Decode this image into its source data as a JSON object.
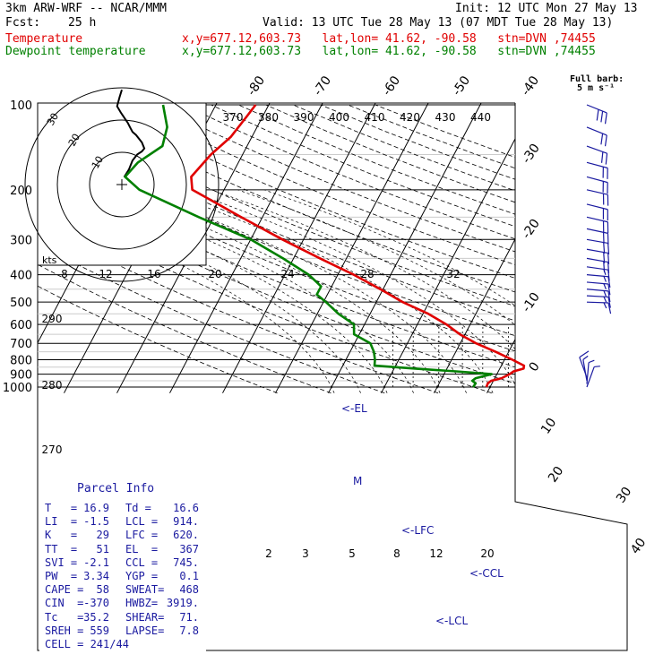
{
  "header": {
    "model": "3km ARW-WRF -- NCAR/MMM",
    "init": "Init: 12 UTC Mon 27 May 13",
    "fcst_label": "Fcst:",
    "fcst_value": "25 h",
    "valid": "Valid: 13 UTC Tue 28 May 13 (07 MDT Tue 28 May 13)",
    "temp_label": "Temperature",
    "dew_label": "Dewpoint temperature",
    "location_info": "x,y=677.12,603.73   lat,lon= 41.62, -90.58   stn=DVN ,74455"
  },
  "barb_legend": {
    "line1": "Full barb:",
    "line2": "5 m s⁻¹"
  },
  "parcel_info": {
    "title": "Parcel Info",
    "rows": [
      {
        "l1": "T   =",
        "v1": "16.9",
        "l2": "Td =",
        "v2": "16.6"
      },
      {
        "l1": "LI  =",
        "v1": "-1.5",
        "l2": "LCL =",
        "v2": "914."
      },
      {
        "l1": "K   =",
        "v1": "29",
        "l2": "LFC =",
        "v2": "620."
      },
      {
        "l1": "TT  =",
        "v1": "51",
        "l2": "EL  =",
        "v2": "367"
      },
      {
        "l1": "SVI =",
        "v1": "-2.1",
        "l2": "CCL =",
        "v2": "745."
      },
      {
        "l1": "PW  =",
        "v1": "3.34",
        "l2": "YGP =",
        "v2": "0.1"
      },
      {
        "l1": "CAPE =",
        "v1": "58",
        "l2": "SWEAT=",
        "v2": "468"
      },
      {
        "l1": "CIN  =",
        "v1": "-370",
        "l2": "HWBZ=",
        "v2": "3919."
      },
      {
        "l1": "Tc   =",
        "v1": "35.2",
        "l2": "SHEAR=",
        "v2": "71."
      },
      {
        "l1": "SREH =",
        "v1": "559",
        "l2": "LAPSE=",
        "v2": "7.8"
      },
      {
        "l1": "CELL = 241/44",
        "v1": "",
        "l2": "",
        "v2": ""
      }
    ]
  },
  "levels": {
    "el": "<-EL",
    "lfc": "<-LFC",
    "ccl": "<-CCL",
    "lcl": "<-LCL",
    "m": "M"
  },
  "hodograph": {
    "unit": "kts",
    "rings": [
      "10",
      "20",
      "30"
    ]
  },
  "colors": {
    "temperature": "#e00000",
    "dewpoint": "#008000",
    "panel_text": "#1a1aa0",
    "barbs": "#1a1aa0"
  },
  "chart_data": {
    "type": "line",
    "pressure_ticks": [
      100,
      200,
      300,
      400,
      500,
      600,
      700,
      800,
      900,
      1000
    ],
    "isotherm_labels_top": [
      -80,
      -70,
      -60,
      -50,
      -40
    ],
    "isotherm_labels_right": [
      -30,
      -20,
      -10,
      0,
      10,
      20,
      30,
      40
    ],
    "theta_e_labels": [
      370,
      380,
      390,
      400,
      410,
      420,
      430,
      440
    ],
    "mixing_ratio_labels_upper": [
      8,
      12,
      16,
      20,
      24,
      28,
      32
    ],
    "mixing_ratio_labels_lower": [
      2,
      3,
      5,
      8,
      12,
      20
    ],
    "theta_labels": [
      290,
      280,
      270
    ],
    "series": [
      {
        "name": "Temperature",
        "points": [
          [
            1000,
            19.3
          ],
          [
            970,
            19.2
          ],
          [
            950,
            19.6
          ],
          [
            930,
            21.3
          ],
          [
            900,
            22.4
          ],
          [
            880,
            22.9
          ],
          [
            860,
            24.5
          ],
          [
            840,
            24.3
          ],
          [
            800,
            21.5
          ],
          [
            750,
            17.5
          ],
          [
            700,
            13.0
          ],
          [
            650,
            9.0
          ],
          [
            600,
            5.5
          ],
          [
            550,
            1.0
          ],
          [
            500,
            -5.0
          ],
          [
            450,
            -10.5
          ],
          [
            400,
            -17.0
          ],
          [
            350,
            -25.0
          ],
          [
            300,
            -34.0
          ],
          [
            250,
            -44.0
          ],
          [
            200,
            -56.0
          ],
          [
            180,
            -57.5
          ],
          [
            150,
            -56.0
          ],
          [
            130,
            -54.0
          ],
          [
            110,
            -53.0
          ],
          [
            100,
            -52.5
          ]
        ]
      },
      {
        "name": "Dewpoint temperature",
        "points": [
          [
            1000,
            16.8
          ],
          [
            970,
            16.9
          ],
          [
            950,
            16.0
          ],
          [
            930,
            16.4
          ],
          [
            900,
            19.0
          ],
          [
            880,
            12.0
          ],
          [
            860,
            4.0
          ],
          [
            840,
            -4.0
          ],
          [
            800,
            -4.5
          ],
          [
            750,
            -5.5
          ],
          [
            700,
            -7.0
          ],
          [
            650,
            -11.0
          ],
          [
            600,
            -12.0
          ],
          [
            550,
            -16.0
          ],
          [
            500,
            -19.5
          ],
          [
            470,
            -22.0
          ],
          [
            440,
            -22.0
          ],
          [
            400,
            -25.5
          ],
          [
            350,
            -32.0
          ],
          [
            300,
            -40.0
          ],
          [
            250,
            -52.0
          ],
          [
            200,
            -66.0
          ],
          [
            180,
            -70.0
          ],
          [
            160,
            -69.0
          ],
          [
            140,
            -66.0
          ],
          [
            120,
            -67.0
          ],
          [
            100,
            -70.0
          ]
        ]
      }
    ],
    "hodograph_points_kts": [
      [
        2,
        5
      ],
      [
        6,
        10
      ],
      [
        9,
        16
      ],
      [
        13,
        20
      ],
      [
        17,
        22
      ],
      [
        19,
        24
      ],
      [
        17,
        28
      ],
      [
        12,
        33
      ],
      [
        9,
        35
      ],
      [
        7,
        38
      ],
      [
        5,
        41
      ],
      [
        -1,
        48
      ],
      [
        -4,
        52
      ],
      [
        -2,
        58
      ],
      [
        0,
        63
      ]
    ],
    "wind_profile": [
      {
        "p": 100,
        "dir": 292,
        "spd": 32
      },
      {
        "p": 120,
        "dir": 292,
        "spd": 24
      },
      {
        "p": 140,
        "dir": 290,
        "spd": 22
      },
      {
        "p": 160,
        "dir": 285,
        "spd": 20
      },
      {
        "p": 180,
        "dir": 285,
        "spd": 20
      },
      {
        "p": 200,
        "dir": 283,
        "spd": 22
      },
      {
        "p": 225,
        "dir": 284,
        "spd": 22
      },
      {
        "p": 250,
        "dir": 283,
        "spd": 22
      },
      {
        "p": 275,
        "dir": 282,
        "spd": 21
      },
      {
        "p": 300,
        "dir": 280,
        "spd": 22
      },
      {
        "p": 325,
        "dir": 280,
        "spd": 21
      },
      {
        "p": 350,
        "dir": 280,
        "spd": 21
      },
      {
        "p": 375,
        "dir": 278,
        "spd": 19
      },
      {
        "p": 400,
        "dir": 275,
        "spd": 18
      },
      {
        "p": 425,
        "dir": 275,
        "spd": 18
      },
      {
        "p": 450,
        "dir": 275,
        "spd": 17
      },
      {
        "p": 475,
        "dir": 273,
        "spd": 16
      },
      {
        "p": 500,
        "dir": 272,
        "spd": 16
      },
      {
        "p": 925,
        "dir": 160,
        "spd": 10
      },
      {
        "p": 950,
        "dir": 170,
        "spd": 9
      },
      {
        "p": 975,
        "dir": 185,
        "spd": 7
      },
      {
        "p": 1000,
        "dir": 200,
        "spd": 6
      }
    ]
  }
}
